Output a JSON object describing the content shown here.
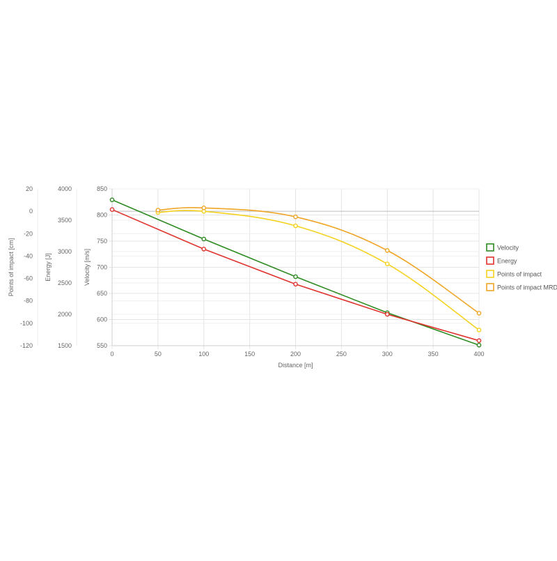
{
  "chart_data": {
    "type": "line",
    "title": "",
    "xlabel": "Distance [m]",
    "xlim": [
      0,
      400
    ],
    "x_ticks": [
      0,
      50,
      100,
      150,
      200,
      250,
      300,
      350,
      400
    ],
    "grid": true,
    "legend_position": "right",
    "y_axes": [
      {
        "id": "impact",
        "label": "Points of impact [cm]",
        "ylim": [
          -120,
          20
        ],
        "ticks": [
          20,
          0,
          -20,
          -40,
          -60,
          -80,
          -100,
          -120
        ]
      },
      {
        "id": "energy",
        "label": "Energy [J]",
        "ylim": [
          1500,
          4000
        ],
        "ticks": [
          4000,
          3500,
          3000,
          2500,
          2000,
          1500
        ]
      },
      {
        "id": "velocity",
        "label": "Velocity [m/s]",
        "ylim": [
          550,
          850
        ],
        "ticks": [
          850,
          800,
          750,
          700,
          650,
          600,
          550
        ]
      }
    ],
    "series": [
      {
        "name": "Velocity",
        "axis": "velocity",
        "color": "#2e8b22",
        "x": [
          0,
          100,
          200,
          300,
          400
        ],
        "values": [
          829,
          754,
          682,
          613,
          551
        ]
      },
      {
        "name": "Energy",
        "axis": "energy",
        "color": "#e0322d",
        "x": [
          0,
          100,
          200,
          300,
          400
        ],
        "values": [
          3670,
          3040,
          2480,
          2000,
          1580
        ]
      },
      {
        "name": "Points of impact",
        "axis": "impact",
        "color": "#f5d21e",
        "x": [
          50,
          100,
          200,
          300,
          400
        ],
        "values": [
          -1,
          0,
          -13,
          -47,
          -106
        ]
      },
      {
        "name": "Points of impact MRD",
        "axis": "impact",
        "color": "#f0a526",
        "x": [
          50,
          100,
          200,
          300,
          400
        ],
        "values": [
          1,
          3,
          -5,
          -35,
          -91
        ]
      }
    ]
  }
}
